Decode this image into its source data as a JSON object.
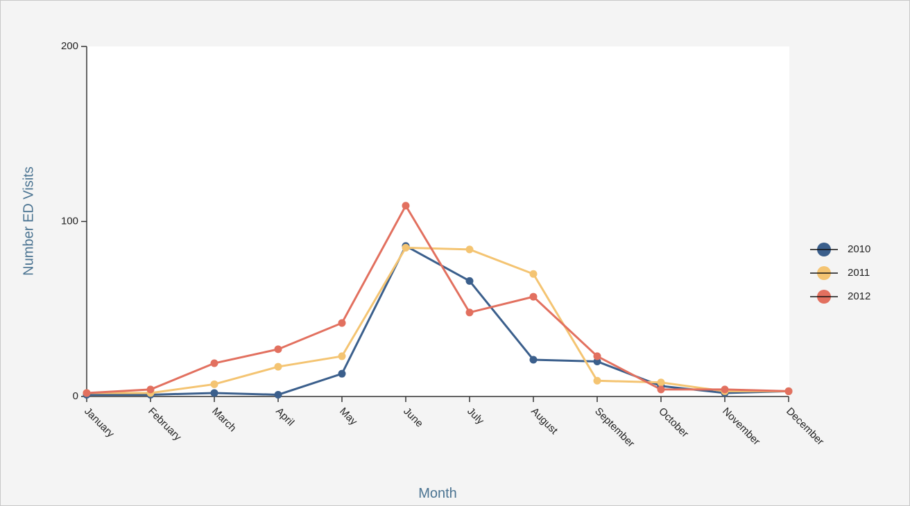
{
  "chart_data": {
    "type": "line",
    "y_label": "Number ED Visits",
    "x_label": "Month",
    "categories": [
      "January",
      "February",
      "March",
      "April",
      "May",
      "June",
      "July",
      "August",
      "September",
      "October",
      "November",
      "December"
    ],
    "series": [
      {
        "name": "2010",
        "color": "#3b5f8c",
        "values": [
          1,
          1,
          2,
          1,
          13,
          86,
          66,
          21,
          20,
          6,
          2,
          3
        ]
      },
      {
        "name": "2011",
        "color": "#f4c472",
        "values": [
          2,
          2,
          7,
          17,
          23,
          85,
          84,
          70,
          9,
          8,
          3,
          3
        ]
      },
      {
        "name": "2012",
        "color": "#e2705f",
        "values": [
          2,
          4,
          19,
          27,
          42,
          109,
          48,
          57,
          23,
          4,
          4,
          3
        ]
      }
    ],
    "ylim": [
      0,
      200
    ],
    "yticks": [
      0,
      100,
      200
    ],
    "legend": "right"
  }
}
